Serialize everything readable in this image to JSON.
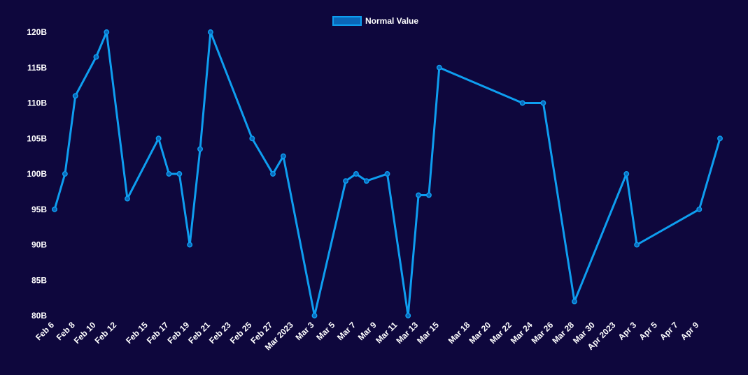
{
  "chart_data": {
    "type": "line",
    "title": "",
    "xlabel": "",
    "ylabel": "",
    "ylim": [
      80,
      120
    ],
    "y_ticks": [
      "80B",
      "85B",
      "90B",
      "95B",
      "100B",
      "105B",
      "110B",
      "115B",
      "120B"
    ],
    "y_tick_values": [
      80,
      85,
      90,
      95,
      100,
      105,
      110,
      115,
      120
    ],
    "x_ticks": [
      {
        "label": "Feb 6",
        "date": "2023-02-06"
      },
      {
        "label": "Feb 8",
        "date": "2023-02-08"
      },
      {
        "label": "Feb 10",
        "date": "2023-02-10"
      },
      {
        "label": "Feb 12",
        "date": "2023-02-12"
      },
      {
        "label": "Feb 15",
        "date": "2023-02-15"
      },
      {
        "label": "Feb 17",
        "date": "2023-02-17"
      },
      {
        "label": "Feb 19",
        "date": "2023-02-19"
      },
      {
        "label": "Feb 21",
        "date": "2023-02-21"
      },
      {
        "label": "Feb 23",
        "date": "2023-02-23"
      },
      {
        "label": "Feb 25",
        "date": "2023-02-25"
      },
      {
        "label": "Feb 27",
        "date": "2023-02-27"
      },
      {
        "label": "Mar 2023",
        "date": "2023-03-01"
      },
      {
        "label": "Mar 3",
        "date": "2023-03-03"
      },
      {
        "label": "Mar 5",
        "date": "2023-03-05"
      },
      {
        "label": "Mar 7",
        "date": "2023-03-07"
      },
      {
        "label": "Mar 9",
        "date": "2023-03-09"
      },
      {
        "label": "Mar 11",
        "date": "2023-03-11"
      },
      {
        "label": "Mar 13",
        "date": "2023-03-13"
      },
      {
        "label": "Mar 15",
        "date": "2023-03-15"
      },
      {
        "label": "Mar 18",
        "date": "2023-03-18"
      },
      {
        "label": "Mar 20",
        "date": "2023-03-20"
      },
      {
        "label": "Mar 22",
        "date": "2023-03-22"
      },
      {
        "label": "Mar 24",
        "date": "2023-03-24"
      },
      {
        "label": "Mar 26",
        "date": "2023-03-26"
      },
      {
        "label": "Mar 28",
        "date": "2023-03-28"
      },
      {
        "label": "Mar 30",
        "date": "2023-03-30"
      },
      {
        "label": "Apr 2023",
        "date": "2023-04-01"
      },
      {
        "label": "Apr 3",
        "date": "2023-04-03"
      },
      {
        "label": "Apr 5",
        "date": "2023-04-05"
      },
      {
        "label": "Apr 7",
        "date": "2023-04-07"
      },
      {
        "label": "Apr 9",
        "date": "2023-04-09"
      }
    ],
    "series": [
      {
        "name": "Normal Value",
        "color": "#0e9ef0",
        "points": [
          {
            "x": "2023-02-06",
            "y": 95
          },
          {
            "x": "2023-02-07",
            "y": 100
          },
          {
            "x": "2023-02-08",
            "y": 111
          },
          {
            "x": "2023-02-10",
            "y": 116.5
          },
          {
            "x": "2023-02-11",
            "y": 120
          },
          {
            "x": "2023-02-13",
            "y": 96.5
          },
          {
            "x": "2023-02-16",
            "y": 105
          },
          {
            "x": "2023-02-17",
            "y": 100
          },
          {
            "x": "2023-02-18",
            "y": 100
          },
          {
            "x": "2023-02-19",
            "y": 90
          },
          {
            "x": "2023-02-20",
            "y": 103.5
          },
          {
            "x": "2023-02-21",
            "y": 120
          },
          {
            "x": "2023-02-25",
            "y": 105
          },
          {
            "x": "2023-02-27",
            "y": 100
          },
          {
            "x": "2023-02-28",
            "y": 102.5
          },
          {
            "x": "2023-03-03",
            "y": 80
          },
          {
            "x": "2023-03-06",
            "y": 99
          },
          {
            "x": "2023-03-07",
            "y": 100
          },
          {
            "x": "2023-03-08",
            "y": 99
          },
          {
            "x": "2023-03-10",
            "y": 100
          },
          {
            "x": "2023-03-12",
            "y": 80
          },
          {
            "x": "2023-03-13",
            "y": 97
          },
          {
            "x": "2023-03-14",
            "y": 97
          },
          {
            "x": "2023-03-15",
            "y": 115
          },
          {
            "x": "2023-03-23",
            "y": 110
          },
          {
            "x": "2023-03-25",
            "y": 110
          },
          {
            "x": "2023-03-28",
            "y": 82
          },
          {
            "x": "2023-04-02",
            "y": 100
          },
          {
            "x": "2023-04-03",
            "y": 90
          },
          {
            "x": "2023-04-09",
            "y": 95
          },
          {
            "x": "2023-04-11",
            "y": 105
          }
        ]
      }
    ],
    "legend": {
      "position": "top-center"
    },
    "grid": false,
    "colors": {
      "background": "#0e073d",
      "text": "#ffffff",
      "line": "#0e9ef0"
    }
  }
}
